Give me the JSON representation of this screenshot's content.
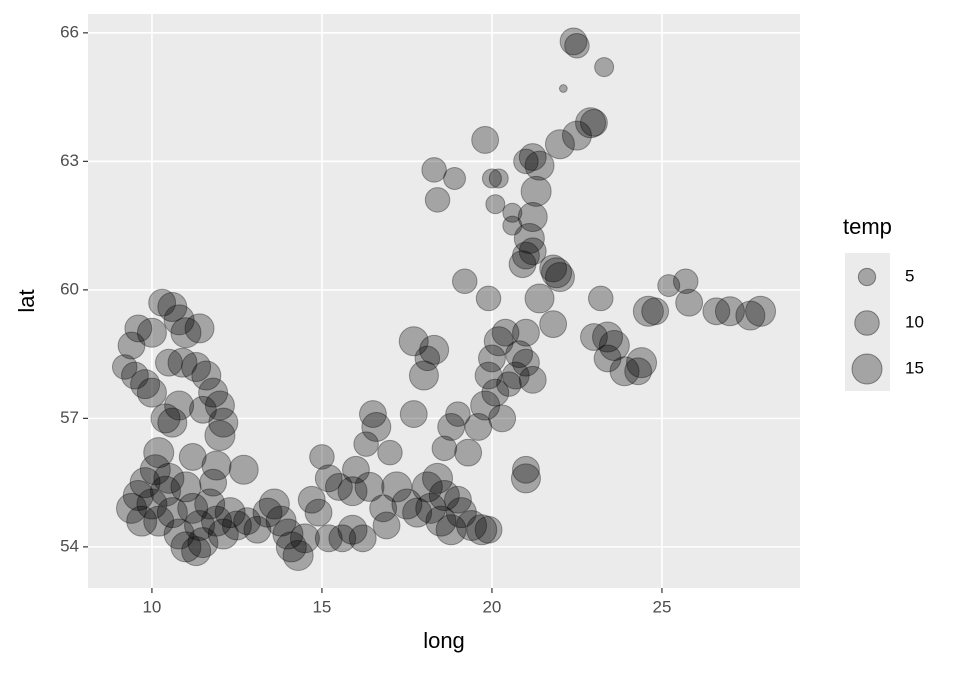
{
  "chart_data": {
    "type": "scatter",
    "x_label": "long",
    "y_label": "lat",
    "xlim": [
      8.12,
      29.06
    ],
    "ylim": [
      53.04,
      66.44
    ],
    "xticks": [
      10,
      15,
      20,
      25
    ],
    "yticks": [
      54,
      57,
      60,
      63,
      66
    ],
    "grid": true,
    "color": "#000000",
    "size_legend": {
      "title": "temp",
      "values": [
        5,
        10,
        15
      ]
    },
    "x": [
      9.2,
      9.5,
      9.8,
      10.0,
      9.4,
      9.6,
      10.0,
      10.3,
      10.6,
      10.8,
      11.0,
      11.4,
      10.5,
      10.9,
      11.3,
      11.6,
      11.8,
      11.5,
      12.0,
      12.1,
      12.0,
      10.8,
      10.4,
      10.6,
      10.2,
      11.2,
      11.9,
      12.7,
      11.8,
      9.4,
      9.6,
      9.8,
      10.0,
      10.2,
      10.4,
      10.6,
      10.8,
      11.0,
      11.2,
      11.4,
      11.5,
      11.7,
      11.9,
      12.1,
      12.3,
      12.5,
      10.1,
      10.5,
      9.7,
      11.0,
      11.3,
      12.8,
      13.1,
      13.4,
      13.6,
      13.8,
      14.0,
      14.1,
      14.3,
      14.5,
      14.7,
      14.9,
      15.2,
      15.6,
      15.9,
      15.0,
      15.2,
      15.5,
      15.9,
      16.0,
      16.3,
      16.5,
      16.6,
      17.0,
      16.4,
      16.8,
      17.2,
      17.5,
      17.8,
      18.1,
      18.4,
      16.9,
      16.2,
      17.7,
      18.2,
      18.5,
      18.8,
      19.1,
      19.4,
      19.7,
      19.9,
      18.6,
      19.0,
      18.6,
      18.8,
      19.0,
      19.3,
      19.6,
      19.8,
      20.1,
      20.3,
      20.5,
      20.7,
      21.0,
      21.2,
      19.9,
      20.2,
      20.4,
      20.8,
      21.4,
      21.0,
      21.8,
      19.9,
      20.0,
      21.0,
      21.0,
      17.7,
      18.0,
      18.3,
      18.1,
      19.2,
      18.3,
      18.9,
      18.4,
      20.0,
      20.2,
      20.1,
      20.6,
      20.6,
      21.0,
      21.2,
      21.4,
      21.3,
      21.2,
      21.1,
      21.2,
      20.9,
      21.0,
      21.9,
      22.0,
      21.8,
      19.8,
      22.0,
      22.5,
      22.9,
      23.0,
      22.1,
      22.4,
      22.5,
      23.3,
      23.2,
      23.0,
      23.4,
      23.6,
      23.4,
      23.9,
      24.4,
      24.3,
      24.6,
      24.8,
      25.2,
      25.7,
      25.8,
      26.6,
      27.0,
      27.6,
      27.9
    ],
    "values": [
      58.2,
      58.0,
      57.8,
      57.6,
      58.7,
      59.1,
      59.0,
      59.7,
      59.6,
      59.3,
      59.0,
      59.1,
      58.3,
      58.3,
      58.2,
      58.0,
      57.6,
      57.2,
      57.3,
      56.9,
      56.6,
      57.3,
      57.0,
      56.9,
      56.2,
      56.1,
      55.9,
      55.8,
      55.5,
      54.9,
      55.2,
      55.5,
      55.0,
      54.6,
      55.3,
      54.8,
      54.3,
      55.4,
      54.9,
      54.5,
      54.1,
      55.0,
      54.6,
      54.3,
      54.8,
      54.5,
      55.8,
      55.6,
      54.6,
      54.0,
      53.9,
      54.6,
      54.4,
      54.8,
      55.0,
      54.6,
      54.3,
      54.0,
      53.8,
      54.2,
      55.1,
      54.8,
      54.2,
      54.2,
      54.4,
      56.1,
      55.6,
      55.4,
      55.3,
      55.8,
      56.4,
      57.1,
      56.8,
      56.2,
      55.4,
      54.9,
      55.4,
      55.0,
      54.8,
      55.4,
      55.6,
      54.5,
      54.2,
      57.1,
      54.9,
      54.6,
      54.4,
      54.8,
      54.5,
      54.4,
      54.4,
      55.2,
      55.1,
      56.3,
      56.8,
      57.1,
      56.2,
      56.8,
      57.3,
      57.6,
      57.0,
      57.8,
      58.0,
      58.3,
      57.9,
      58.0,
      58.8,
      59.0,
      58.5,
      59.8,
      59.0,
      59.2,
      59.8,
      58.4,
      55.6,
      55.8,
      58.8,
      58.0,
      58.6,
      58.4,
      60.2,
      62.8,
      62.6,
      62.1,
      62.6,
      62.6,
      62.0,
      61.8,
      61.5,
      63.0,
      63.1,
      62.9,
      62.3,
      61.7,
      61.2,
      60.9,
      60.6,
      60.8,
      60.4,
      60.3,
      60.5,
      63.5,
      63.4,
      63.6,
      63.9,
      63.9,
      64.7,
      65.8,
      65.7,
      65.2,
      59.8,
      58.9,
      58.9,
      58.7,
      58.4,
      58.1,
      58.3,
      58.1,
      59.5,
      59.5,
      60.1,
      60.2,
      59.7,
      59.5,
      59.5,
      59.4,
      59.5
    ],
    "sizes": [
      10,
      12,
      14,
      14,
      12,
      12,
      14,
      12,
      14,
      15,
      15,
      14,
      12,
      14,
      14,
      14,
      14,
      12,
      14,
      14,
      15,
      14,
      14,
      14,
      15,
      12,
      14,
      14,
      12,
      15,
      15,
      15,
      15,
      15,
      15,
      15,
      15,
      15,
      15,
      15,
      15,
      15,
      15,
      15,
      15,
      14,
      15,
      15,
      15,
      15,
      14,
      12,
      12,
      14,
      15,
      15,
      15,
      15,
      15,
      14,
      12,
      12,
      12,
      12,
      14,
      10,
      12,
      12,
      14,
      12,
      10,
      12,
      14,
      10,
      14,
      12,
      15,
      15,
      14,
      15,
      15,
      12,
      12,
      12,
      15,
      15,
      15,
      15,
      15,
      15,
      12,
      15,
      12,
      10,
      12,
      10,
      12,
      12,
      14,
      12,
      12,
      10,
      12,
      12,
      12,
      12,
      14,
      12,
      12,
      14,
      12,
      12,
      10,
      12,
      14,
      12,
      14,
      14,
      14,
      10,
      10,
      10,
      8,
      10,
      6,
      6,
      6,
      6,
      6,
      10,
      12,
      14,
      15,
      14,
      15,
      12,
      12,
      12,
      15,
      14,
      12,
      12,
      14,
      14,
      15,
      12,
      1,
      12,
      10,
      6,
      10,
      12,
      15,
      15,
      12,
      14,
      15,
      12,
      15,
      12,
      8,
      10,
      12,
      12,
      14,
      14,
      15
    ]
  }
}
